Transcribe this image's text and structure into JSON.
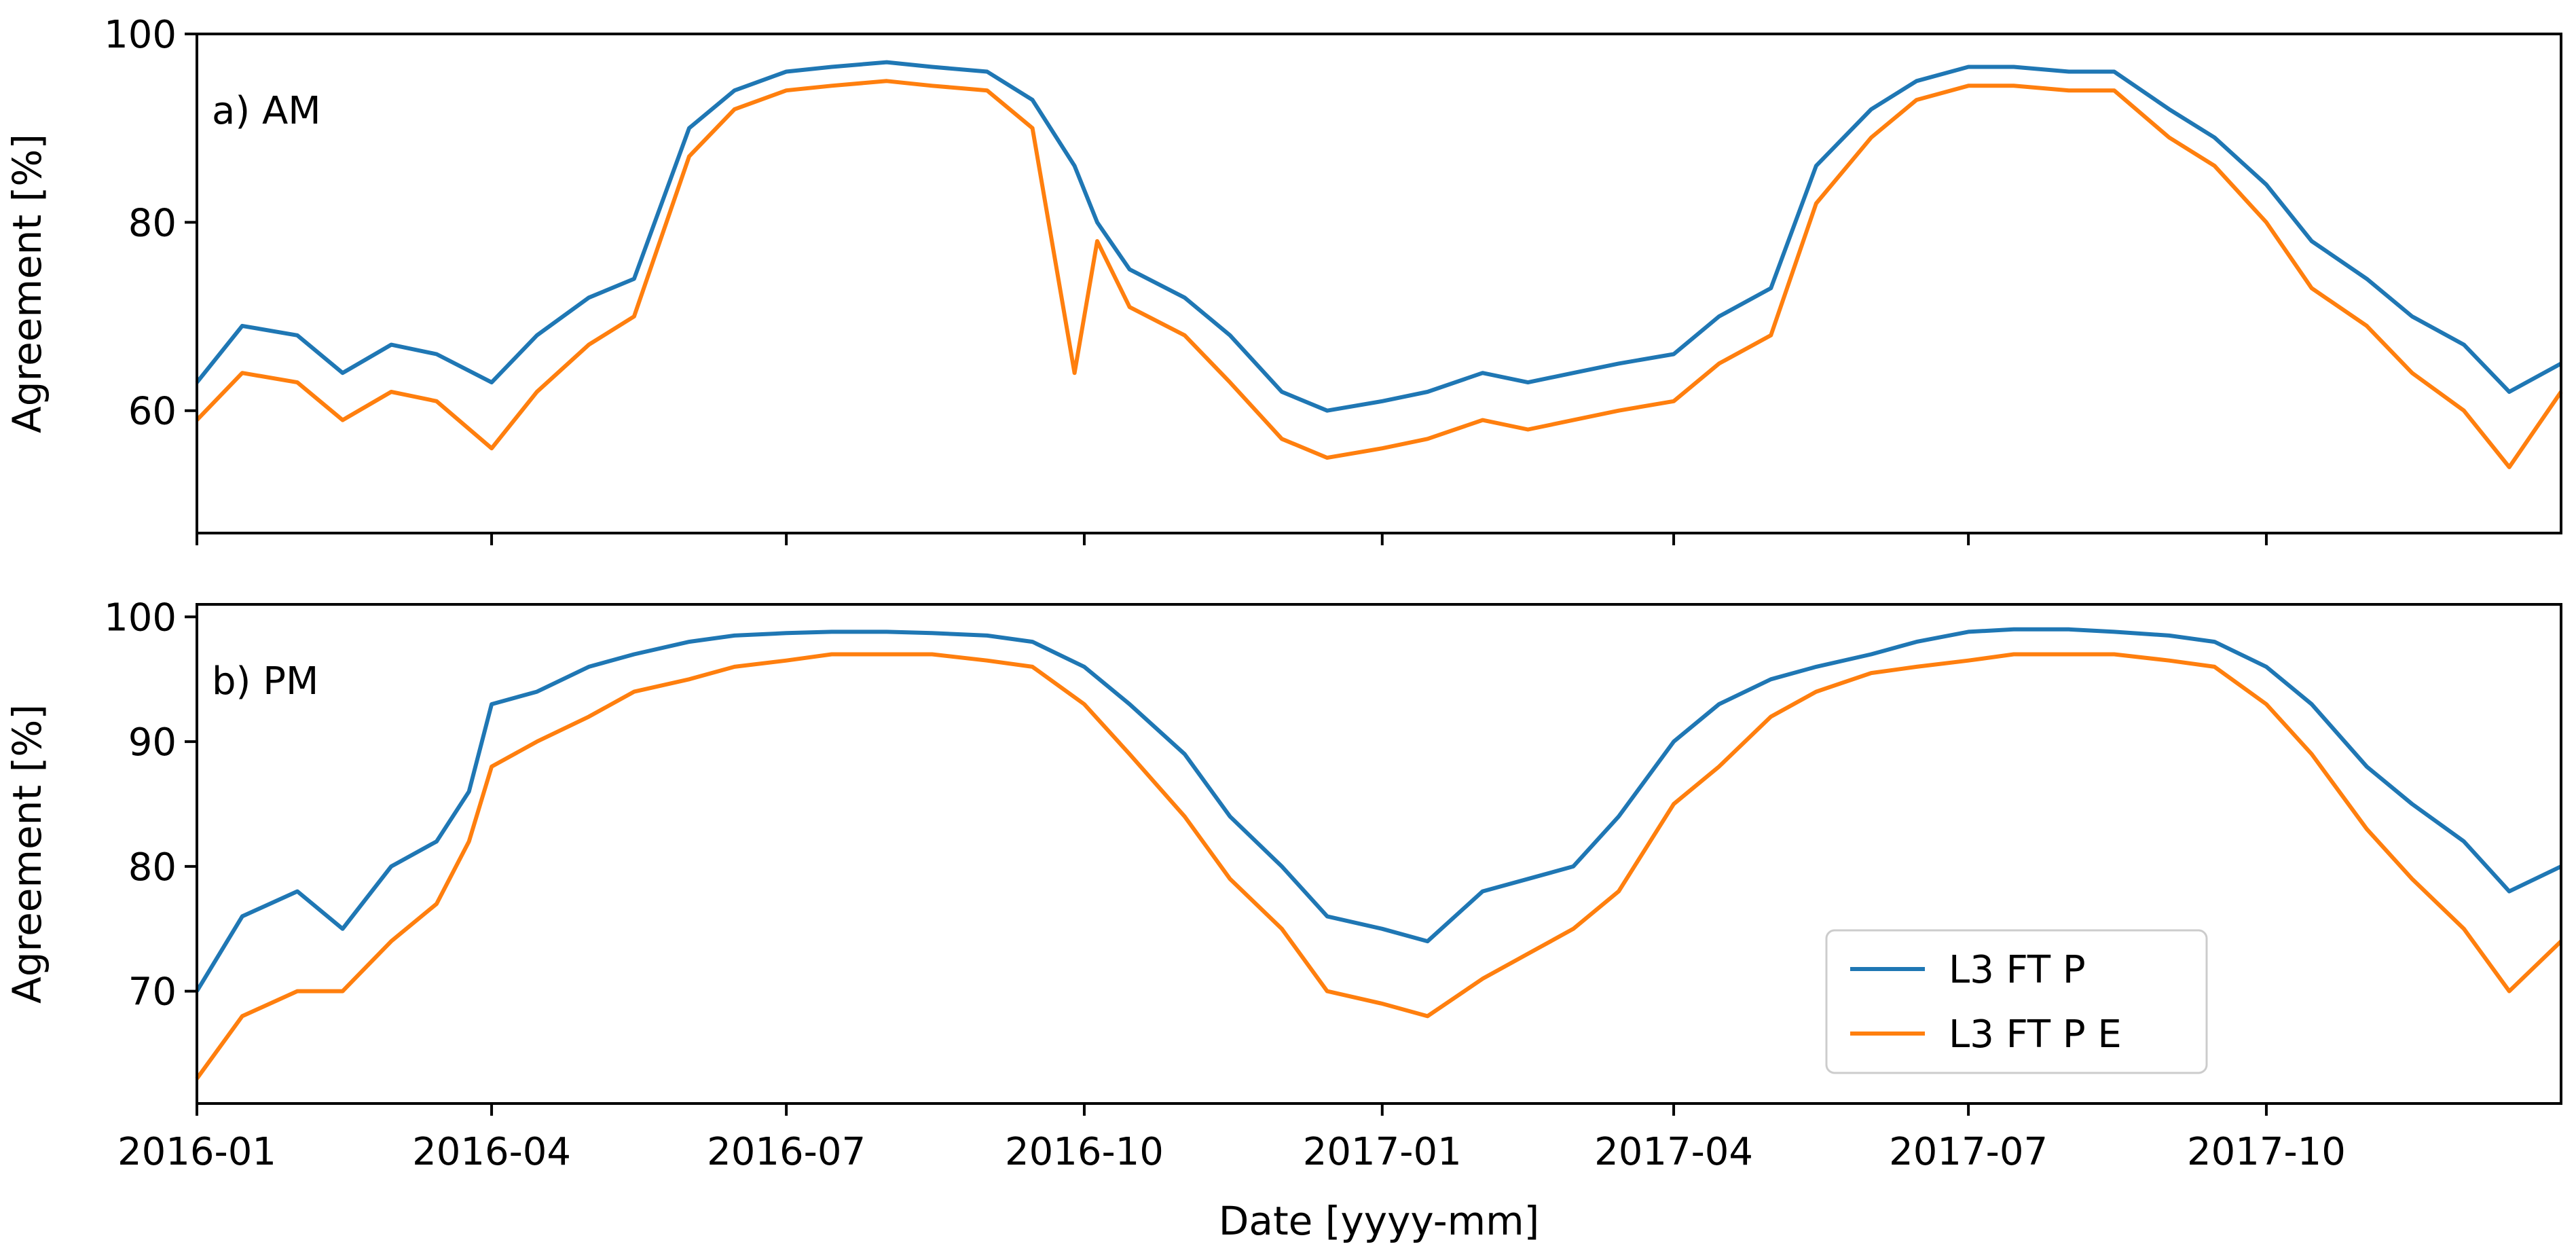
{
  "chart_data": [
    {
      "type": "line",
      "panel_label": "a) AM",
      "xlabel": "",
      "ylabel": "Agreement [%]",
      "xlim": [
        "2016-01-01",
        "2017-12-31"
      ],
      "ylim": [
        47,
        100
      ],
      "yticks": [
        60,
        80,
        100
      ],
      "series": [
        {
          "name": "L3 FT P",
          "color": "#1f77b4",
          "dates": [
            "2016-01-01",
            "2016-01-15",
            "2016-02-01",
            "2016-02-15",
            "2016-03-01",
            "2016-03-15",
            "2016-04-01",
            "2016-04-15",
            "2016-05-01",
            "2016-05-15",
            "2016-06-01",
            "2016-06-15",
            "2016-07-01",
            "2016-07-15",
            "2016-08-01",
            "2016-08-15",
            "2016-09-01",
            "2016-09-15",
            "2016-09-28",
            "2016-10-05",
            "2016-10-15",
            "2016-11-01",
            "2016-11-15",
            "2016-12-01",
            "2016-12-15",
            "2017-01-01",
            "2017-01-15",
            "2017-02-01",
            "2017-02-15",
            "2017-03-01",
            "2017-03-15",
            "2017-04-01",
            "2017-04-15",
            "2017-05-01",
            "2017-05-15",
            "2017-06-01",
            "2017-06-15",
            "2017-07-01",
            "2017-07-15",
            "2017-08-01",
            "2017-08-15",
            "2017-09-01",
            "2017-09-15",
            "2017-10-01",
            "2017-10-15",
            "2017-11-01",
            "2017-11-15",
            "2017-12-01",
            "2017-12-15",
            "2017-12-31"
          ],
          "values": [
            63,
            69,
            68,
            64,
            67,
            66,
            63,
            68,
            72,
            74,
            90,
            94,
            96,
            96.5,
            97,
            96.5,
            96,
            93,
            86,
            80,
            75,
            72,
            68,
            62,
            60,
            61,
            62,
            64,
            63,
            64,
            65,
            66,
            70,
            73,
            86,
            92,
            95,
            96.5,
            96.5,
            96,
            96,
            92,
            89,
            84,
            78,
            74,
            70,
            67,
            62,
            65
          ]
        },
        {
          "name": "L3 FT P E",
          "color": "#ff7f0e",
          "dates": [
            "2016-01-01",
            "2016-01-15",
            "2016-02-01",
            "2016-02-15",
            "2016-03-01",
            "2016-03-15",
            "2016-04-01",
            "2016-04-15",
            "2016-05-01",
            "2016-05-15",
            "2016-06-01",
            "2016-06-15",
            "2016-07-01",
            "2016-07-15",
            "2016-08-01",
            "2016-08-15",
            "2016-09-01",
            "2016-09-15",
            "2016-09-28",
            "2016-10-05",
            "2016-10-15",
            "2016-11-01",
            "2016-11-15",
            "2016-12-01",
            "2016-12-15",
            "2017-01-01",
            "2017-01-15",
            "2017-02-01",
            "2017-02-15",
            "2017-03-01",
            "2017-03-15",
            "2017-04-01",
            "2017-04-15",
            "2017-05-01",
            "2017-05-15",
            "2017-06-01",
            "2017-06-15",
            "2017-07-01",
            "2017-07-15",
            "2017-08-01",
            "2017-08-15",
            "2017-09-01",
            "2017-09-15",
            "2017-10-01",
            "2017-10-15",
            "2017-11-01",
            "2017-11-15",
            "2017-12-01",
            "2017-12-15",
            "2017-12-31"
          ],
          "values": [
            59,
            64,
            63,
            59,
            62,
            61,
            56,
            62,
            67,
            70,
            87,
            92,
            94,
            94.5,
            95,
            94.5,
            94,
            90,
            64,
            78,
            71,
            68,
            63,
            57,
            55,
            56,
            57,
            59,
            58,
            59,
            60,
            61,
            65,
            68,
            82,
            89,
            93,
            94.5,
            94.5,
            94,
            94,
            89,
            86,
            80,
            73,
            69,
            64,
            60,
            54,
            62
          ]
        }
      ]
    },
    {
      "type": "line",
      "panel_label": "b) PM",
      "xlabel": "Date [yyyy-mm]",
      "ylabel": "Agreement [%]",
      "xlim": [
        "2016-01-01",
        "2017-12-31"
      ],
      "ylim": [
        61,
        101
      ],
      "yticks": [
        70,
        80,
        90,
        100
      ],
      "xticks": [
        "2016-01",
        "2016-04",
        "2016-07",
        "2016-10",
        "2017-01",
        "2017-04",
        "2017-07",
        "2017-10"
      ],
      "legend": {
        "position": "lower-right",
        "entries": [
          "L3 FT P",
          "L3 FT P E"
        ]
      },
      "series": [
        {
          "name": "L3 FT P",
          "color": "#1f77b4",
          "dates": [
            "2016-01-01",
            "2016-01-15",
            "2016-02-01",
            "2016-02-15",
            "2016-03-01",
            "2016-03-15",
            "2016-03-25",
            "2016-04-01",
            "2016-04-15",
            "2016-05-01",
            "2016-05-15",
            "2016-06-01",
            "2016-06-15",
            "2016-07-01",
            "2016-07-15",
            "2016-08-01",
            "2016-08-15",
            "2016-09-01",
            "2016-09-15",
            "2016-10-01",
            "2016-10-15",
            "2016-11-01",
            "2016-11-15",
            "2016-12-01",
            "2016-12-15",
            "2017-01-01",
            "2017-01-15",
            "2017-02-01",
            "2017-02-15",
            "2017-03-01",
            "2017-03-15",
            "2017-04-01",
            "2017-04-15",
            "2017-05-01",
            "2017-05-15",
            "2017-06-01",
            "2017-06-15",
            "2017-07-01",
            "2017-07-15",
            "2017-08-01",
            "2017-08-15",
            "2017-09-01",
            "2017-09-15",
            "2017-10-01",
            "2017-10-15",
            "2017-11-01",
            "2017-11-15",
            "2017-12-01",
            "2017-12-15",
            "2017-12-31"
          ],
          "values": [
            70,
            76,
            78,
            75,
            80,
            82,
            86,
            93,
            94,
            96,
            97,
            98,
            98.5,
            98.7,
            98.8,
            98.8,
            98.7,
            98.5,
            98,
            96,
            93,
            89,
            84,
            80,
            76,
            75,
            74,
            78,
            79,
            80,
            84,
            90,
            93,
            95,
            96,
            97,
            98,
            98.8,
            99,
            99,
            98.8,
            98.5,
            98,
            96,
            93,
            88,
            85,
            82,
            78,
            80
          ]
        },
        {
          "name": "L3 FT P E",
          "color": "#ff7f0e",
          "dates": [
            "2016-01-01",
            "2016-01-15",
            "2016-02-01",
            "2016-02-15",
            "2016-03-01",
            "2016-03-15",
            "2016-03-25",
            "2016-04-01",
            "2016-04-15",
            "2016-05-01",
            "2016-05-15",
            "2016-06-01",
            "2016-06-15",
            "2016-07-01",
            "2016-07-15",
            "2016-08-01",
            "2016-08-15",
            "2016-09-01",
            "2016-09-15",
            "2016-10-01",
            "2016-10-15",
            "2016-11-01",
            "2016-11-15",
            "2016-12-01",
            "2016-12-15",
            "2017-01-01",
            "2017-01-15",
            "2017-02-01",
            "2017-02-15",
            "2017-03-01",
            "2017-03-15",
            "2017-04-01",
            "2017-04-15",
            "2017-05-01",
            "2017-05-15",
            "2017-06-01",
            "2017-06-15",
            "2017-07-01",
            "2017-07-15",
            "2017-08-01",
            "2017-08-15",
            "2017-09-01",
            "2017-09-15",
            "2017-10-01",
            "2017-10-15",
            "2017-11-01",
            "2017-11-15",
            "2017-12-01",
            "2017-12-15",
            "2017-12-31"
          ],
          "values": [
            63,
            68,
            70,
            70,
            74,
            77,
            82,
            88,
            90,
            92,
            94,
            95,
            96,
            96.5,
            97,
            97,
            97,
            96.5,
            96,
            93,
            89,
            84,
            79,
            75,
            70,
            69,
            68,
            71,
            73,
            75,
            78,
            85,
            88,
            92,
            94,
            95.5,
            96,
            96.5,
            97,
            97,
            97,
            96.5,
            96,
            93,
            89,
            83,
            79,
            75,
            70,
            74
          ]
        }
      ]
    }
  ]
}
